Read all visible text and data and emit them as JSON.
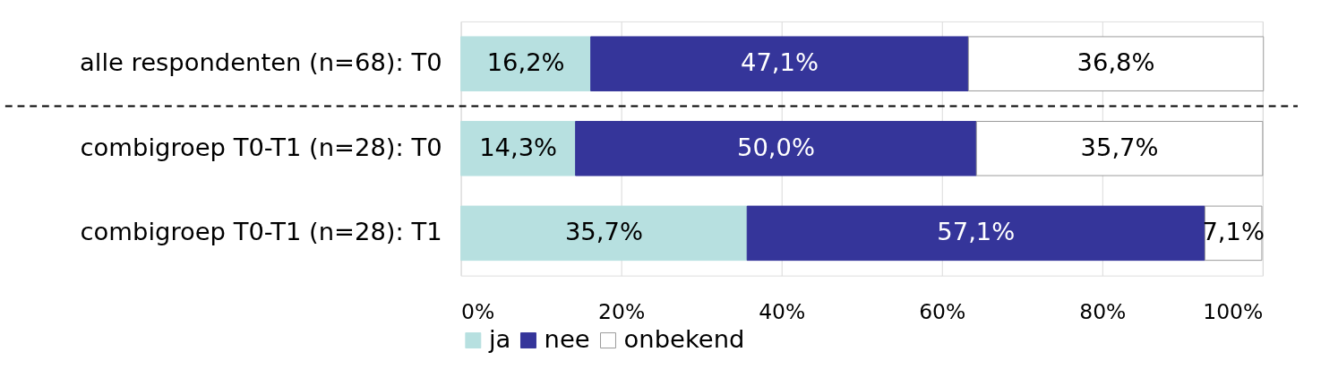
{
  "chart_data": {
    "type": "bar",
    "orientation": "horizontal",
    "stacked": true,
    "categories": [
      "alle respondenten (n=68): T0",
      "combigroep T0-T1 (n=28): T0",
      "combigroep T0-T1 (n=28): T1"
    ],
    "series": [
      {
        "name": "ja",
        "color": "#b7e0e0",
        "values": [
          16.2,
          14.3,
          35.7
        ],
        "value_labels": [
          "16,2%",
          "14,3%",
          "35,7%"
        ]
      },
      {
        "name": "nee",
        "color": "#35359a",
        "values": [
          47.1,
          50.0,
          57.1
        ],
        "value_labels": [
          "47,1%",
          "50,0%",
          "57,1%"
        ]
      },
      {
        "name": "onbekend",
        "color": "#ffffff",
        "values": [
          36.8,
          35.7,
          7.1
        ],
        "value_labels": [
          "36,8%",
          "35,7%",
          "7,1%"
        ]
      }
    ],
    "xlim": [
      0,
      100
    ],
    "xticks": [
      {
        "value": 0,
        "label": "0%"
      },
      {
        "value": 20,
        "label": "20%"
      },
      {
        "value": 40,
        "label": "40%"
      },
      {
        "value": 60,
        "label": "60%"
      },
      {
        "value": 80,
        "label": "80%"
      },
      {
        "value": 100,
        "label": "100%"
      }
    ],
    "ref_lines": [
      {
        "axis": "y",
        "value": "alle respondenten (n=68): T0",
        "color": "#000000",
        "line_style": "dashed"
      }
    ],
    "grid": "x",
    "legend": "bottom"
  }
}
